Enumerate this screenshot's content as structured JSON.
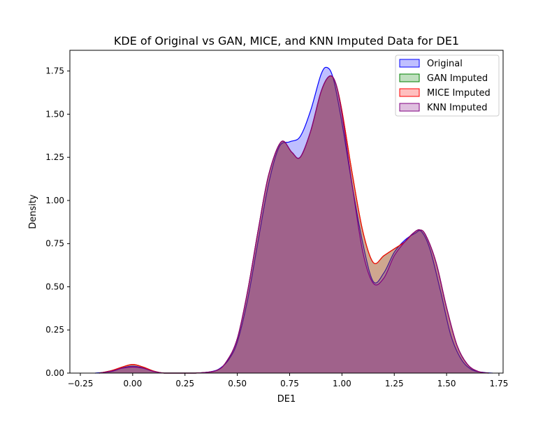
{
  "chart_data": {
    "type": "area",
    "title": "KDE of Original vs GAN, MICE, and KNN Imputed Data for DE1",
    "xlabel": "DE1",
    "ylabel": "Density",
    "xlim": [
      -0.3,
      1.77
    ],
    "ylim": [
      0,
      1.87
    ],
    "xticks": [
      -0.25,
      0.0,
      0.25,
      0.5,
      0.75,
      1.0,
      1.25,
      1.5,
      1.75
    ],
    "xtick_labels": [
      "−0.25",
      "0.00",
      "0.25",
      "0.50",
      "0.75",
      "1.00",
      "1.25",
      "1.50",
      "1.75"
    ],
    "yticks": [
      0.0,
      0.25,
      0.5,
      0.75,
      1.0,
      1.25,
      1.5,
      1.75
    ],
    "ytick_labels": [
      "0.00",
      "0.25",
      "0.50",
      "0.75",
      "1.00",
      "1.25",
      "1.50",
      "1.75"
    ],
    "grid": false,
    "legend_position": "top-right",
    "series": [
      {
        "name": "Original",
        "color": "#0000ff",
        "fill_opacity": 0.25,
        "x": [
          -0.18,
          -0.1,
          -0.05,
          0.0,
          0.05,
          0.1,
          0.15,
          0.2,
          0.3,
          0.38,
          0.42,
          0.46,
          0.5,
          0.55,
          0.6,
          0.65,
          0.7,
          0.75,
          0.8,
          0.85,
          0.9,
          0.93,
          0.96,
          1.0,
          1.05,
          1.1,
          1.15,
          1.2,
          1.25,
          1.3,
          1.35,
          1.38,
          1.42,
          1.47,
          1.52,
          1.57,
          1.62,
          1.67,
          1.72
        ],
        "y": [
          0.0,
          0.01,
          0.03,
          0.04,
          0.03,
          0.01,
          0.0,
          0.0,
          0.0,
          0.01,
          0.03,
          0.08,
          0.18,
          0.43,
          0.77,
          1.1,
          1.31,
          1.34,
          1.37,
          1.52,
          1.73,
          1.77,
          1.7,
          1.45,
          1.08,
          0.75,
          0.53,
          0.58,
          0.7,
          0.77,
          0.81,
          0.82,
          0.72,
          0.48,
          0.22,
          0.08,
          0.02,
          0.005,
          0.0
        ]
      },
      {
        "name": "GAN Imputed",
        "color": "#008000",
        "fill_opacity": 0.25,
        "x": [
          -0.16,
          -0.1,
          -0.05,
          0.0,
          0.05,
          0.1,
          0.15,
          0.2,
          0.3,
          0.4,
          0.45,
          0.5,
          0.55,
          0.6,
          0.65,
          0.71,
          0.76,
          0.8,
          0.85,
          0.9,
          0.94,
          0.97,
          1.0,
          1.05,
          1.1,
          1.15,
          1.2,
          1.25,
          1.3,
          1.34,
          1.37,
          1.4,
          1.45,
          1.5,
          1.55,
          1.6,
          1.65,
          1.7
        ],
        "y": [
          0.0,
          0.015,
          0.035,
          0.05,
          0.035,
          0.012,
          0.0,
          0.0,
          0.0,
          0.015,
          0.07,
          0.2,
          0.48,
          0.83,
          1.15,
          1.34,
          1.28,
          1.25,
          1.4,
          1.63,
          1.72,
          1.68,
          1.52,
          1.15,
          0.82,
          0.64,
          0.68,
          0.72,
          0.76,
          0.81,
          0.83,
          0.8,
          0.64,
          0.38,
          0.16,
          0.05,
          0.01,
          0.0
        ]
      },
      {
        "name": "MICE Imputed",
        "color": "#ff0000",
        "fill_opacity": 0.25,
        "x": [
          -0.16,
          -0.1,
          -0.05,
          0.0,
          0.05,
          0.1,
          0.15,
          0.2,
          0.3,
          0.4,
          0.45,
          0.5,
          0.55,
          0.6,
          0.65,
          0.71,
          0.76,
          0.8,
          0.85,
          0.9,
          0.94,
          0.97,
          1.0,
          1.05,
          1.1,
          1.15,
          1.2,
          1.25,
          1.3,
          1.34,
          1.37,
          1.4,
          1.45,
          1.5,
          1.55,
          1.6,
          1.65,
          1.7
        ],
        "y": [
          0.0,
          0.015,
          0.035,
          0.05,
          0.035,
          0.012,
          0.0,
          0.0,
          0.0,
          0.015,
          0.07,
          0.2,
          0.48,
          0.83,
          1.15,
          1.34,
          1.28,
          1.25,
          1.4,
          1.63,
          1.72,
          1.68,
          1.52,
          1.15,
          0.82,
          0.64,
          0.68,
          0.72,
          0.76,
          0.81,
          0.83,
          0.8,
          0.64,
          0.38,
          0.16,
          0.05,
          0.01,
          0.0
        ]
      },
      {
        "name": "KNN Imputed",
        "color": "#800080",
        "fill_opacity": 0.25,
        "x": [
          -0.16,
          -0.1,
          -0.05,
          0.0,
          0.05,
          0.1,
          0.15,
          0.2,
          0.3,
          0.4,
          0.45,
          0.5,
          0.55,
          0.6,
          0.65,
          0.71,
          0.76,
          0.8,
          0.85,
          0.9,
          0.94,
          0.97,
          1.0,
          1.05,
          1.1,
          1.15,
          1.2,
          1.25,
          1.3,
          1.34,
          1.37,
          1.4,
          1.45,
          1.5,
          1.55,
          1.6,
          1.65,
          1.7
        ],
        "y": [
          0.0,
          0.012,
          0.028,
          0.035,
          0.028,
          0.01,
          0.0,
          0.0,
          0.0,
          0.015,
          0.07,
          0.2,
          0.48,
          0.83,
          1.15,
          1.34,
          1.28,
          1.25,
          1.4,
          1.63,
          1.72,
          1.68,
          1.5,
          1.08,
          0.7,
          0.52,
          0.55,
          0.68,
          0.76,
          0.81,
          0.83,
          0.8,
          0.64,
          0.38,
          0.16,
          0.05,
          0.01,
          0.0
        ]
      }
    ]
  }
}
